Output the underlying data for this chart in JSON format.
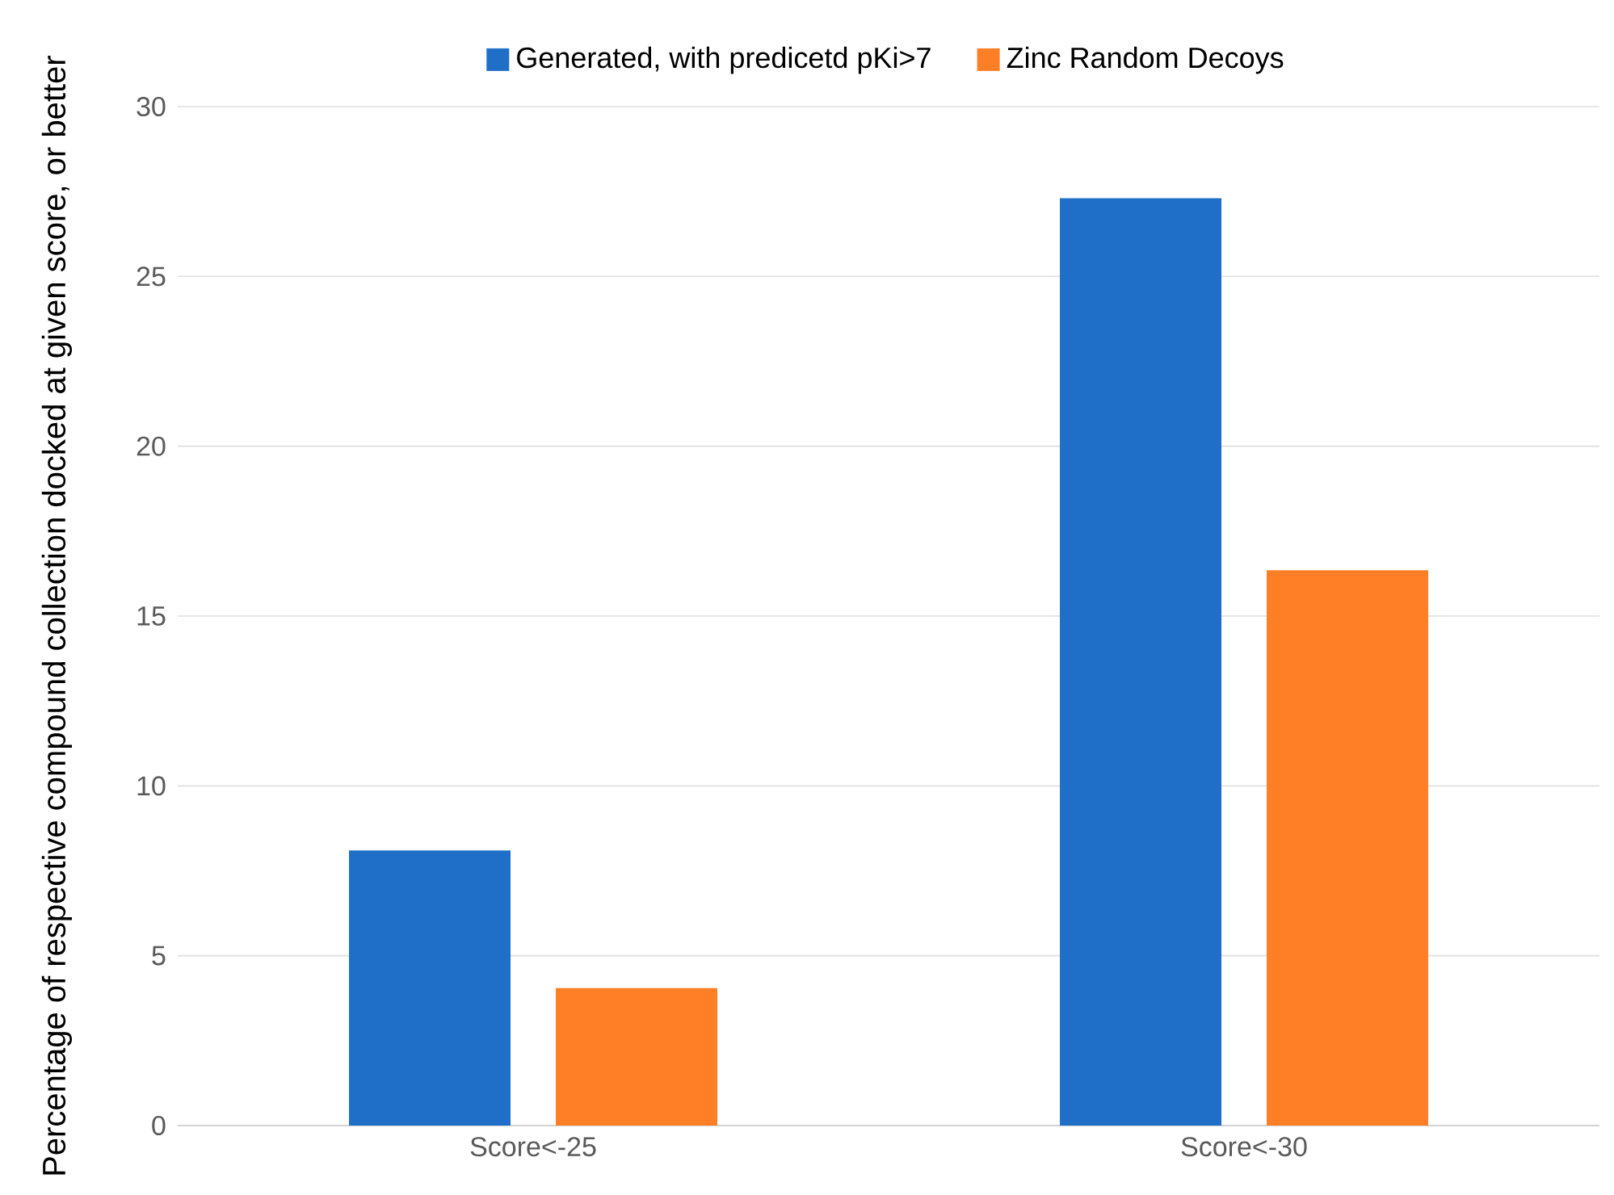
{
  "chart_data": {
    "type": "bar",
    "ylabel": "Percentage of respective compound collection docked at given score, or better",
    "categories": [
      "Score<-25",
      "Score<-30"
    ],
    "series": [
      {
        "name": "Generated, with predicetd pKi>7",
        "color": "#1f6fc8",
        "values": [
          8.1,
          27.3
        ]
      },
      {
        "name": "Zinc Random Decoys",
        "color": "#ff7f27",
        "values": [
          4.05,
          16.35
        ]
      }
    ],
    "ylim": [
      0,
      30
    ],
    "yticks": [
      0,
      5,
      10,
      15,
      20,
      25,
      30
    ],
    "grid": "y",
    "legend": "top"
  }
}
